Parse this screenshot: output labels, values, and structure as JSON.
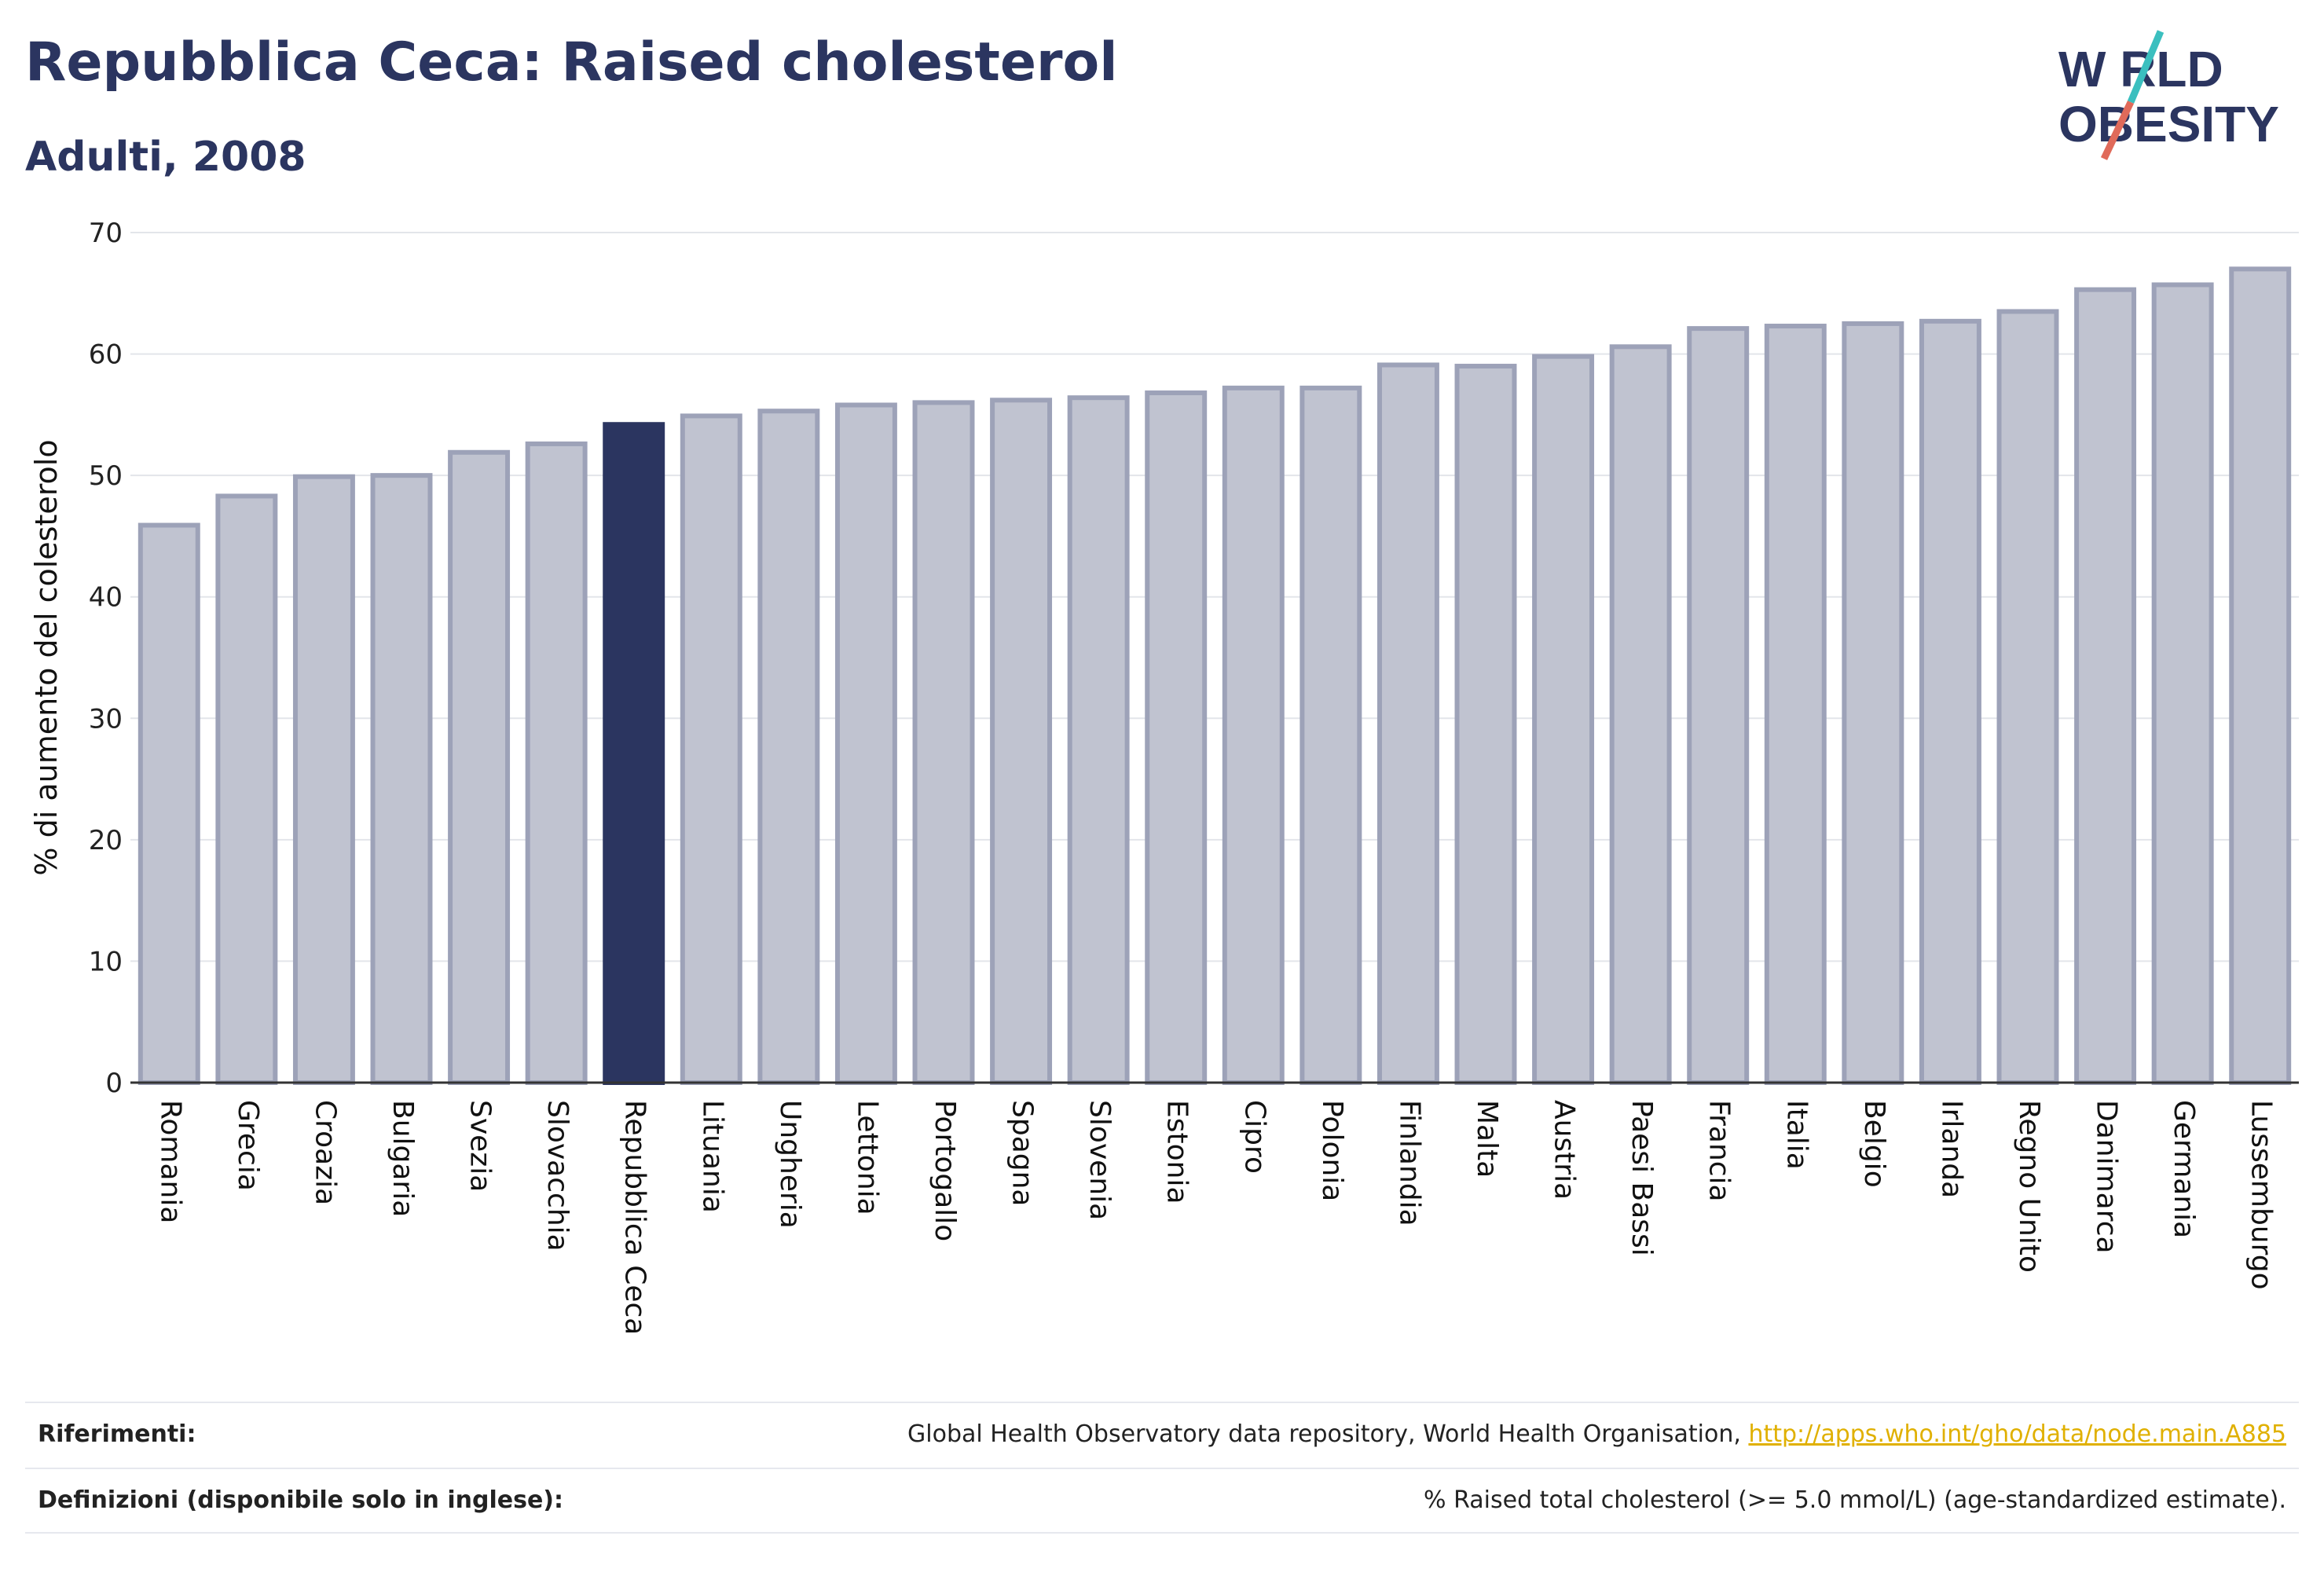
{
  "header": {
    "title": "Repubblica Ceca: Raised cholesterol",
    "subtitle": "Adulti, 2008"
  },
  "logo": {
    "line1": "W RLD",
    "line2": "OBESITY",
    "brand_color": "#2b3560",
    "accent_teal": "#3bbfbf",
    "accent_red": "#e06a5a"
  },
  "colors": {
    "bar_default": "#c0c3d0",
    "bar_default_stroke": "#9da2b8",
    "bar_highlight": "#2b3560",
    "grid": "#e3e5ea",
    "axis": "#333333"
  },
  "chart_data": {
    "type": "bar",
    "ylabel": "% di aumento del colesterolo",
    "xlabel": "",
    "ylim": [
      0,
      70
    ],
    "yticks": [
      0,
      10,
      20,
      30,
      40,
      50,
      60,
      70
    ],
    "grid": true,
    "highlight": "Repubblica Ceca",
    "categories": [
      "Romania",
      "Grecia",
      "Croazia",
      "Bulgaria",
      "Svezia",
      "Slovacchia",
      "Repubblica Ceca",
      "Lituania",
      "Ungheria",
      "Lettonia",
      "Portogallo",
      "Spagna",
      "Slovenia",
      "Estonia",
      "Cipro",
      "Polonia",
      "Finlandia",
      "Malta",
      "Austria",
      "Paesi Bassi",
      "Francia",
      "Italia",
      "Belgio",
      "Irlanda",
      "Regno Unito",
      "Danimarca",
      "Germania",
      "Lussemburgo"
    ],
    "values": [
      45.9,
      48.3,
      49.9,
      50.0,
      51.9,
      52.6,
      54.2,
      54.9,
      55.3,
      55.8,
      56.0,
      56.2,
      56.4,
      56.8,
      57.2,
      57.2,
      59.1,
      59.0,
      59.8,
      60.6,
      62.1,
      62.3,
      62.5,
      62.7,
      63.5,
      65.3,
      65.7,
      67.0
    ]
  },
  "footer": {
    "references_label": "Riferimenti:",
    "references_text": "Global Health Observatory data repository, World Health Organisation, ",
    "references_link": "http://apps.who.int/gho/data/node.main.A885",
    "definitions_label": "Definizioni (disponibile solo in inglese):",
    "definitions_text": "% Raised total cholesterol (>= 5.0 mmol/L) (age-standardized estimate)."
  }
}
